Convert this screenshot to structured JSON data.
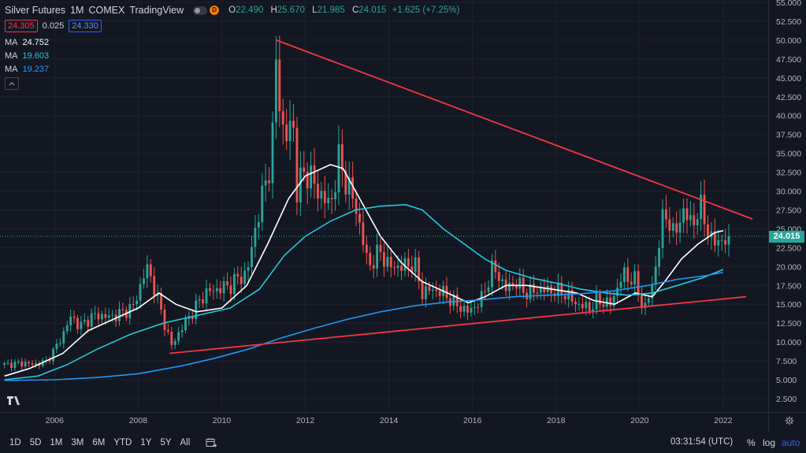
{
  "header": {
    "symbol": "Silver Futures",
    "interval": "1M",
    "exchange": "COMEX",
    "source": "TradingView",
    "badge_letter": "D",
    "ohlc": [
      {
        "k": "O",
        "v": "22.490"
      },
      {
        "k": "H",
        "v": "25.670"
      },
      {
        "k": "L",
        "v": "21.985"
      },
      {
        "k": "C",
        "v": "24.015"
      }
    ],
    "change": "+1.625 (+7.25%)",
    "bid": "24.305",
    "spread": "0.025",
    "ask": "24.330"
  },
  "ma": [
    {
      "name": "MA",
      "value": "24.752",
      "color": "#ffffff"
    },
    {
      "name": "MA",
      "value": "19.603",
      "color": "#26c6da"
    },
    {
      "name": "MA",
      "value": "19.237",
      "color": "#2196f3"
    }
  ],
  "colors": {
    "up": "#26a69a",
    "down": "#ef5350",
    "trendline": "#f23645",
    "bg": "#131722",
    "grid": "#1e222d"
  },
  "last_price_label": "24.015",
  "toolbar": {
    "ranges": [
      "1D",
      "5D",
      "1M",
      "3M",
      "6M",
      "YTD",
      "1Y",
      "5Y",
      "All"
    ],
    "clock": "03:31:54 (UTC)",
    "percent": "%",
    "log": "log",
    "auto": "auto"
  },
  "chart_data": {
    "type": "candlestick",
    "interval": "monthly",
    "y_ticks": [
      "2.500",
      "5.000",
      "7.500",
      "10.000",
      "12.500",
      "15.000",
      "17.500",
      "20.000",
      "22.500",
      "25.000",
      "27.500",
      "30.000",
      "32.500",
      "35.000",
      "37.500",
      "40.000",
      "42.500",
      "45.000",
      "47.500",
      "50.000",
      "52.500",
      "55.000"
    ],
    "x_ticks": [
      "2006",
      "2008",
      "2010",
      "2012",
      "2014",
      "2016",
      "2018",
      "2020",
      "2022"
    ],
    "ylim": [
      2.5,
      55
    ],
    "xlim": [
      2004.75,
      2022.85
    ],
    "last_price": 24.015,
    "close_path": [
      [
        2004.8,
        7.0
      ],
      [
        2005.0,
        7.1
      ],
      [
        2005.3,
        7.2
      ],
      [
        2005.5,
        7.0
      ],
      [
        2005.8,
        7.4
      ],
      [
        2006.0,
        9.0
      ],
      [
        2006.2,
        11.0
      ],
      [
        2006.4,
        13.5
      ],
      [
        2006.6,
        12.0
      ],
      [
        2006.8,
        13.0
      ],
      [
        2007.0,
        13.6
      ],
      [
        2007.3,
        13.3
      ],
      [
        2007.6,
        13.8
      ],
      [
        2007.9,
        14.8
      ],
      [
        2008.2,
        20.0
      ],
      [
        2008.4,
        17.0
      ],
      [
        2008.6,
        13.0
      ],
      [
        2008.8,
        9.5
      ],
      [
        2009.0,
        11.5
      ],
      [
        2009.3,
        14.0
      ],
      [
        2009.6,
        16.5
      ],
      [
        2009.9,
        17.0
      ],
      [
        2010.2,
        17.5
      ],
      [
        2010.4,
        18.5
      ],
      [
        2010.6,
        19.0
      ],
      [
        2010.8,
        25.0
      ],
      [
        2011.0,
        30.0
      ],
      [
        2011.2,
        35.0
      ],
      [
        2011.3,
        47.0
      ],
      [
        2011.5,
        36.0
      ],
      [
        2011.7,
        40.0
      ],
      [
        2011.8,
        30.0
      ],
      [
        2012.0,
        33.0
      ],
      [
        2012.3,
        30.0
      ],
      [
        2012.6,
        28.0
      ],
      [
        2012.8,
        34.0
      ],
      [
        2013.0,
        31.0
      ],
      [
        2013.2,
        28.0
      ],
      [
        2013.4,
        23.0
      ],
      [
        2013.5,
        20.0
      ],
      [
        2013.8,
        22.0
      ],
      [
        2014.0,
        20.0
      ],
      [
        2014.3,
        20.0
      ],
      [
        2014.6,
        20.5
      ],
      [
        2014.8,
        16.5
      ],
      [
        2015.0,
        17.0
      ],
      [
        2015.3,
        16.5
      ],
      [
        2015.6,
        15.0
      ],
      [
        2015.9,
        14.0
      ],
      [
        2016.2,
        15.5
      ],
      [
        2016.5,
        20.0
      ],
      [
        2016.8,
        17.0
      ],
      [
        2017.0,
        18.0
      ],
      [
        2017.3,
        16.5
      ],
      [
        2017.6,
        17.0
      ],
      [
        2017.9,
        16.8
      ],
      [
        2018.2,
        16.5
      ],
      [
        2018.5,
        15.0
      ],
      [
        2018.8,
        14.5
      ],
      [
        2019.0,
        15.5
      ],
      [
        2019.3,
        15.0
      ],
      [
        2019.6,
        19.0
      ],
      [
        2019.9,
        18.0
      ],
      [
        2020.1,
        14.0
      ],
      [
        2020.3,
        17.5
      ],
      [
        2020.5,
        24.0
      ],
      [
        2020.6,
        28.0
      ],
      [
        2020.8,
        24.0
      ],
      [
        2021.0,
        27.0
      ],
      [
        2021.3,
        26.0
      ],
      [
        2021.5,
        28.0
      ],
      [
        2021.7,
        23.0
      ],
      [
        2021.9,
        24.0
      ],
      [
        2022.0,
        22.5
      ],
      [
        2022.1,
        24.0
      ]
    ],
    "series": [
      {
        "name": "MA",
        "color": "#ffffff",
        "last": 24.752,
        "points": [
          [
            2004.8,
            5.5
          ],
          [
            2005.4,
            6.5
          ],
          [
            2006.2,
            8.5
          ],
          [
            2006.8,
            11.5
          ],
          [
            2007.4,
            13.0
          ],
          [
            2008.0,
            14.5
          ],
          [
            2008.5,
            16.5
          ],
          [
            2008.9,
            15.0
          ],
          [
            2009.4,
            14.0
          ],
          [
            2010.0,
            14.5
          ],
          [
            2010.6,
            17.5
          ],
          [
            2011.1,
            23.0
          ],
          [
            2011.6,
            29.0
          ],
          [
            2012.0,
            32.0
          ],
          [
            2012.6,
            33.5
          ],
          [
            2012.9,
            33.0
          ],
          [
            2013.3,
            29.0
          ],
          [
            2013.8,
            24.0
          ],
          [
            2014.3,
            20.5
          ],
          [
            2014.8,
            18.0
          ],
          [
            2015.4,
            16.5
          ],
          [
            2015.9,
            15.2
          ],
          [
            2016.3,
            16.0
          ],
          [
            2016.8,
            17.5
          ],
          [
            2017.3,
            17.5
          ],
          [
            2017.9,
            17.0
          ],
          [
            2018.5,
            16.5
          ],
          [
            2018.9,
            15.5
          ],
          [
            2019.4,
            15.0
          ],
          [
            2019.9,
            16.5
          ],
          [
            2020.3,
            16.0
          ],
          [
            2020.6,
            18.0
          ],
          [
            2021.0,
            21.0
          ],
          [
            2021.4,
            23.0
          ],
          [
            2021.8,
            24.5
          ],
          [
            2022.0,
            24.752
          ]
        ]
      },
      {
        "name": "MA",
        "color": "#26c6da",
        "last": 19.603,
        "points": [
          [
            2004.8,
            5.0
          ],
          [
            2005.6,
            5.5
          ],
          [
            2006.3,
            7.0
          ],
          [
            2007.0,
            9.0
          ],
          [
            2007.8,
            11.0
          ],
          [
            2008.6,
            12.5
          ],
          [
            2009.4,
            13.5
          ],
          [
            2010.2,
            14.5
          ],
          [
            2010.9,
            17.0
          ],
          [
            2011.5,
            21.5
          ],
          [
            2012.0,
            24.0
          ],
          [
            2012.6,
            26.0
          ],
          [
            2013.2,
            27.5
          ],
          [
            2013.8,
            28.0
          ],
          [
            2014.4,
            28.2
          ],
          [
            2014.8,
            27.5
          ],
          [
            2015.3,
            25.0
          ],
          [
            2015.8,
            23.0
          ],
          [
            2016.3,
            21.0
          ],
          [
            2016.8,
            19.5
          ],
          [
            2017.4,
            18.5
          ],
          [
            2018.0,
            17.8
          ],
          [
            2018.6,
            17.0
          ],
          [
            2019.2,
            16.5
          ],
          [
            2019.7,
            16.2
          ],
          [
            2020.3,
            16.5
          ],
          [
            2020.9,
            17.5
          ],
          [
            2021.5,
            18.5
          ],
          [
            2022.0,
            19.603
          ]
        ]
      },
      {
        "name": "MA",
        "color": "#2196f3",
        "last": 19.237,
        "points": [
          [
            2004.8,
            4.9
          ],
          [
            2006.0,
            5.0
          ],
          [
            2007.0,
            5.3
          ],
          [
            2008.0,
            5.8
          ],
          [
            2009.0,
            6.8
          ],
          [
            2009.8,
            7.8
          ],
          [
            2010.6,
            9.0
          ],
          [
            2011.4,
            10.5
          ],
          [
            2012.2,
            11.8
          ],
          [
            2013.0,
            13.0
          ],
          [
            2013.8,
            14.0
          ],
          [
            2014.6,
            14.8
          ],
          [
            2015.4,
            15.3
          ],
          [
            2016.2,
            15.6
          ],
          [
            2017.0,
            16.0
          ],
          [
            2017.8,
            16.2
          ],
          [
            2018.6,
            16.4
          ],
          [
            2019.4,
            16.8
          ],
          [
            2020.2,
            17.5
          ],
          [
            2020.9,
            18.3
          ],
          [
            2021.6,
            18.8
          ],
          [
            2022.0,
            19.237
          ]
        ]
      }
    ],
    "trendlines": [
      {
        "name": "upper",
        "color": "#f23645",
        "from": [
          2011.3,
          50.0
        ],
        "to": [
          2022.7,
          26.3
        ]
      },
      {
        "name": "lower",
        "color": "#f23645",
        "from": [
          2008.75,
          8.5
        ],
        "to": [
          2022.55,
          16.0
        ]
      }
    ]
  }
}
